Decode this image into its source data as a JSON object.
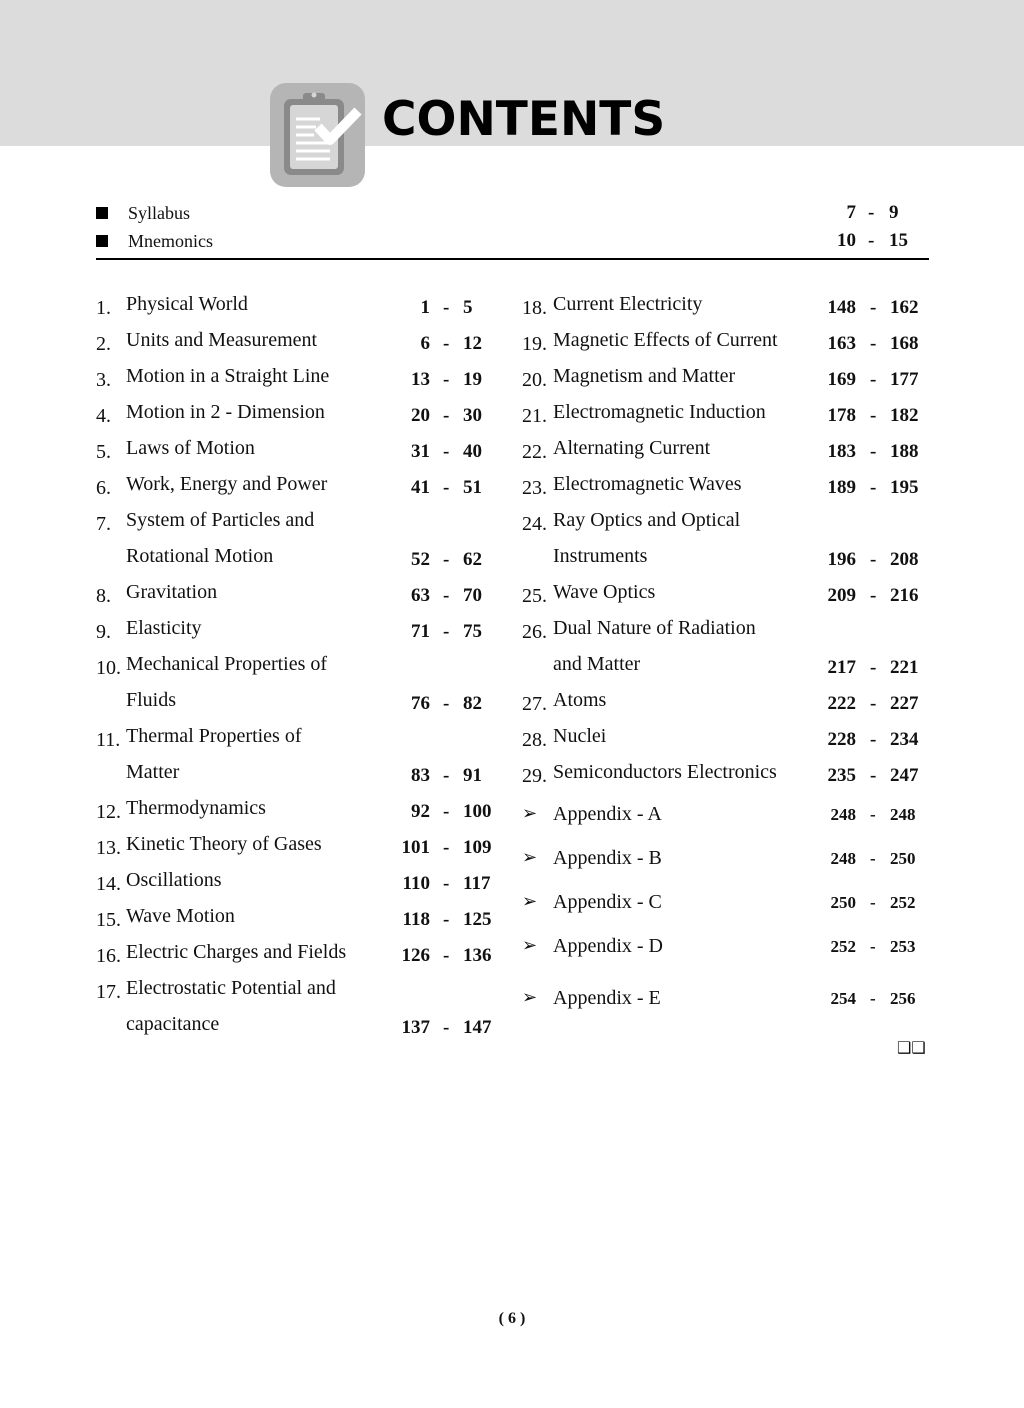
{
  "header": {
    "title": "CONTENTS",
    "icon": "clipboard-check-icon"
  },
  "preliminaries": [
    {
      "label": "Syllabus",
      "start": "7",
      "end": "9"
    },
    {
      "label": "Mnemonics",
      "start": "10",
      "end": "15"
    }
  ],
  "left_column": [
    {
      "num": "1.",
      "lines": [
        "Physical World"
      ],
      "start": "1",
      "end": "5"
    },
    {
      "num": "2.",
      "lines": [
        "Units and Measurement"
      ],
      "start": "6",
      "end": "12"
    },
    {
      "num": "3.",
      "lines": [
        "Motion in a Straight Line"
      ],
      "start": "13",
      "end": "19"
    },
    {
      "num": "4.",
      "lines": [
        "Motion in 2 - Dimension"
      ],
      "start": "20",
      "end": "30"
    },
    {
      "num": "5.",
      "lines": [
        "Laws of Motion"
      ],
      "start": "31",
      "end": "40"
    },
    {
      "num": "6.",
      "lines": [
        "Work, Energy and Power"
      ],
      "start": "41",
      "end": "51"
    },
    {
      "num": "7.",
      "lines": [
        "System of Particles and",
        "Rotational Motion"
      ],
      "start": "52",
      "end": "62"
    },
    {
      "num": "8.",
      "lines": [
        "Gravitation"
      ],
      "start": "63",
      "end": "70"
    },
    {
      "num": "9.",
      "lines": [
        "Elasticity"
      ],
      "start": "71",
      "end": "75"
    },
    {
      "num": "10.",
      "lines": [
        "Mechanical Properties of",
        "Fluids"
      ],
      "start": "76",
      "end": "82"
    },
    {
      "num": "11.",
      "lines": [
        "Thermal Properties of",
        "Matter"
      ],
      "start": "83",
      "end": "91"
    },
    {
      "num": "12.",
      "lines": [
        "Thermodynamics"
      ],
      "start": "92",
      "end": "100"
    },
    {
      "num": "13.",
      "lines": [
        "Kinetic Theory of Gases"
      ],
      "start": "101",
      "end": "109"
    },
    {
      "num": "14.",
      "lines": [
        "Oscillations"
      ],
      "start": "110",
      "end": "117"
    },
    {
      "num": "15.",
      "lines": [
        "Wave Motion"
      ],
      "start": "118",
      "end": "125"
    },
    {
      "num": "16.",
      "lines": [
        "Electric Charges and Fields"
      ],
      "start": "126",
      "end": "136"
    },
    {
      "num": "17.",
      "lines": [
        "Electrostatic Potential and",
        "capacitance"
      ],
      "start": "137",
      "end": "147"
    }
  ],
  "right_column": [
    {
      "num": "18.",
      "lines": [
        "Current Electricity"
      ],
      "start": "148",
      "end": "162"
    },
    {
      "num": "19.",
      "lines": [
        "Magnetic Effects of Current"
      ],
      "start": "163",
      "end": "168"
    },
    {
      "num": "20.",
      "lines": [
        "Magnetism and Matter"
      ],
      "start": "169",
      "end": "177"
    },
    {
      "num": "21.",
      "lines": [
        "Electromagnetic Induction"
      ],
      "start": "178",
      "end": "182"
    },
    {
      "num": "22.",
      "lines": [
        "Alternating Current"
      ],
      "start": "183",
      "end": "188"
    },
    {
      "num": "23.",
      "lines": [
        "Electromagnetic Waves"
      ],
      "start": "189",
      "end": "195"
    },
    {
      "num": "24.",
      "lines": [
        "Ray Optics and Optical",
        "Instruments"
      ],
      "start": "196",
      "end": "208"
    },
    {
      "num": "25.",
      "lines": [
        "Wave Optics"
      ],
      "start": "209",
      "end": "216"
    },
    {
      "num": "26.",
      "lines": [
        "Dual Nature of Radiation",
        "and Matter"
      ],
      "start": "217",
      "end": "221"
    },
    {
      "num": "27.",
      "lines": [
        "Atoms"
      ],
      "start": "222",
      "end": "227"
    },
    {
      "num": "28.",
      "lines": [
        "Nuclei"
      ],
      "start": "228",
      "end": "234"
    },
    {
      "num": "29.",
      "lines": [
        "Semiconductors Electronics"
      ],
      "start": "235",
      "end": "247"
    }
  ],
  "appendices": [
    {
      "label": "Appendix - A",
      "start": "248",
      "end": "248"
    },
    {
      "label": "Appendix - B",
      "start": "248",
      "end": "250"
    },
    {
      "label": "Appendix - C",
      "start": "250",
      "end": "252"
    },
    {
      "label": "Appendix - D",
      "start": "252",
      "end": "253"
    },
    {
      "label": "Appendix - E",
      "start": "254",
      "end": "256"
    }
  ],
  "end_mark": "❑❑",
  "folio": "( 6 )"
}
